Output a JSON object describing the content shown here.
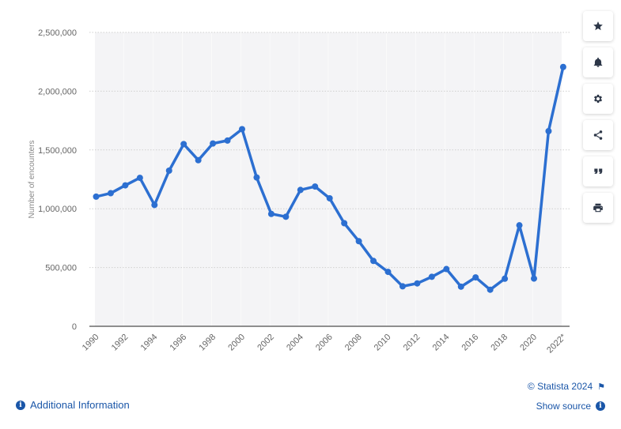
{
  "chart_data": {
    "type": "line",
    "ylabel": "Number of encounters",
    "xlabel": "",
    "ylim": [
      0,
      2500000
    ],
    "y_ticks": [
      {
        "value": 0,
        "label": "0"
      },
      {
        "value": 500000,
        "label": "500,000"
      },
      {
        "value": 1000000,
        "label": "1,000,000"
      },
      {
        "value": 1500000,
        "label": "1,500,000"
      },
      {
        "value": 2000000,
        "label": "2,000,000"
      },
      {
        "value": 2500000,
        "label": "2,500,000"
      }
    ],
    "x_tick_labels": [
      "1990",
      "1992",
      "1994",
      "1996",
      "1998",
      "2000",
      "2002",
      "2004",
      "2006",
      "2008",
      "2010",
      "2012",
      "2014",
      "2016",
      "2018",
      "2020",
      "2022*"
    ],
    "categories": [
      "1990",
      "1991",
      "1992",
      "1993",
      "1994",
      "1995",
      "1996",
      "1997",
      "1998",
      "1999",
      "2000",
      "2001",
      "2002",
      "2003",
      "2004",
      "2005",
      "2006",
      "2007",
      "2008",
      "2009",
      "2010",
      "2011",
      "2012",
      "2013",
      "2014",
      "2015",
      "2016",
      "2017",
      "2018",
      "2019",
      "2020",
      "2021",
      "2022*"
    ],
    "series": [
      {
        "values": [
          1103000,
          1132000,
          1199000,
          1263000,
          1032000,
          1324000,
          1550000,
          1413000,
          1555000,
          1580000,
          1677000,
          1266000,
          956000,
          932000,
          1160000,
          1189000,
          1089000,
          877000,
          724000,
          556000,
          463000,
          340000,
          365000,
          421000,
          487000,
          337000,
          416000,
          311000,
          405000,
          859000,
          406000,
          1660000,
          2206000
        ]
      }
    ],
    "grid": true,
    "colors": {
      "line": "#2c6fd1",
      "band": "#f4f4f6",
      "grid": "#cfcfcf",
      "axis": "#222222"
    }
  },
  "sidebar": {
    "buttons": [
      {
        "icon": "star-icon"
      },
      {
        "icon": "bell-icon"
      },
      {
        "icon": "gear-icon"
      },
      {
        "icon": "share-icon"
      },
      {
        "icon": "quote-icon"
      },
      {
        "icon": "print-icon"
      }
    ]
  },
  "footer": {
    "additional_info": "Additional Information",
    "copyright": "© Statista 2024",
    "show_source": "Show source",
    "info_glyph": "i"
  }
}
